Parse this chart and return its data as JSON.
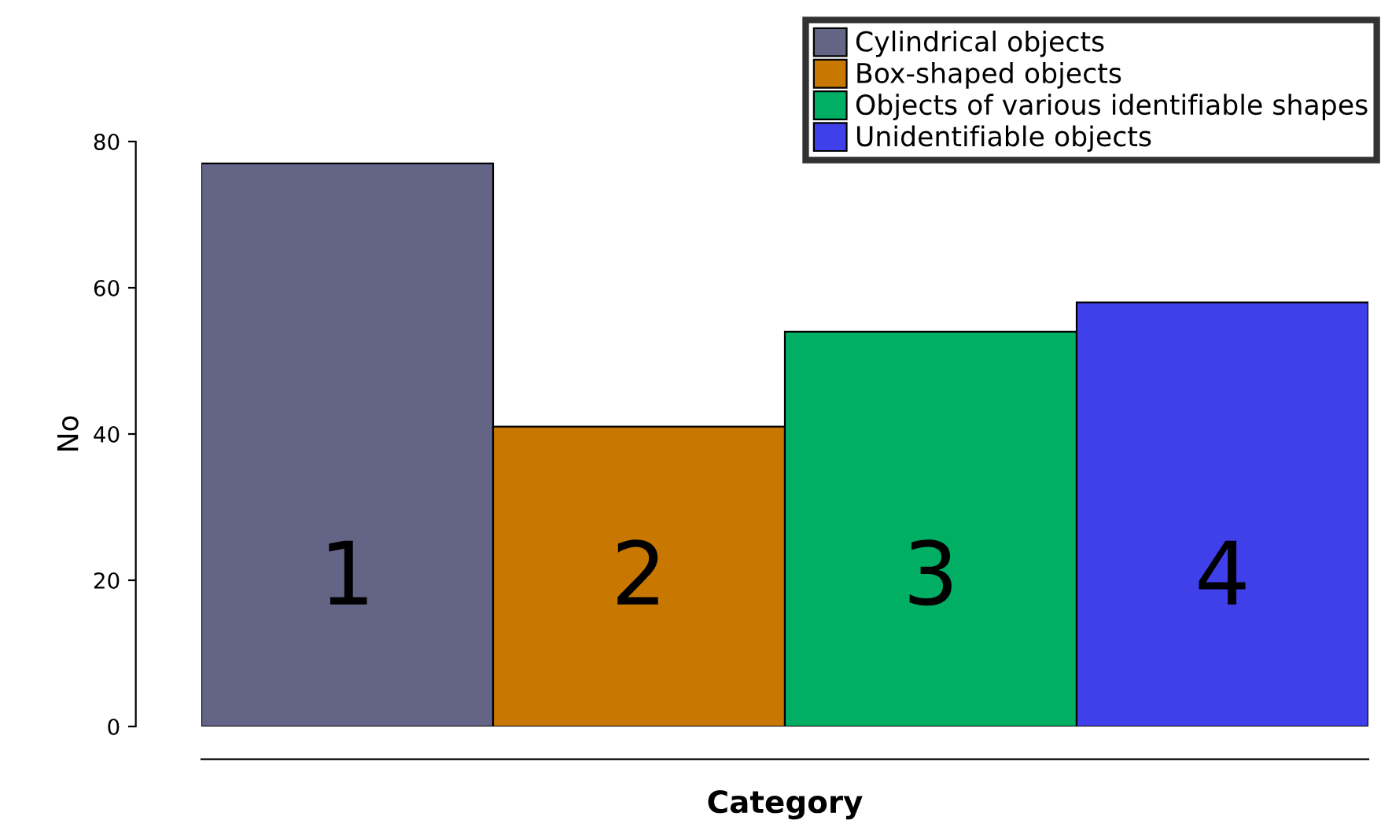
{
  "chart_data": {
    "type": "bar",
    "xlabel": "Category",
    "ylabel": "No",
    "categories": [
      "1",
      "2",
      "3",
      "4"
    ],
    "series": [
      {
        "name": "Cylindrical objects",
        "color": "#646487",
        "values": [
          77,
          null,
          null,
          null
        ]
      },
      {
        "name": "Box-shaped objects",
        "color": "#c87800",
        "values": [
          null,
          41,
          null,
          null
        ]
      },
      {
        "name": "Objects of various identifiable shapes",
        "color": "#00af64",
        "values": [
          null,
          null,
          54,
          null
        ]
      },
      {
        "name": "Unidentifiable objects",
        "color": "#4040eb",
        "values": [
          null,
          null,
          null,
          58
        ]
      }
    ],
    "ylim": [
      0,
      80
    ],
    "yticks": [
      0,
      20,
      40,
      60,
      80
    ],
    "grid": false,
    "legend": "top right",
    "tick_labels": "y"
  }
}
